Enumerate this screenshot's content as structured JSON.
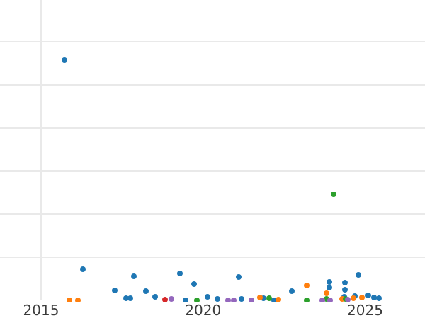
{
  "figure": {
    "background_color": "#ffffff",
    "grid_color": "#e9e9e9",
    "tick_label_color": "#3b3b3b"
  },
  "chart_data": {
    "type": "scatter",
    "title": "",
    "xlabel": "",
    "ylabel": "",
    "grid": true,
    "legend": "none",
    "x_ticks": [
      {
        "label": "2015",
        "value": 2015
      },
      {
        "label": "2020",
        "value": 2020
      },
      {
        "label": "2025",
        "value": 2025
      }
    ],
    "x_range": [
      2013.73,
      2026.85
    ],
    "y_unit": "gridline_intervals_above_baseline",
    "y_range": [
      0,
      6.97
    ],
    "y_gridlines": [
      1,
      2,
      3,
      4,
      5,
      6
    ],
    "series": [
      {
        "name": "series-blue",
        "color": "#1f77b4",
        "points": [
          [
            2015.72,
            5.57
          ],
          [
            2016.29,
            0.72
          ],
          [
            2017.27,
            0.23
          ],
          [
            2017.62,
            0.05
          ],
          [
            2017.75,
            0.05
          ],
          [
            2017.86,
            0.56
          ],
          [
            2018.23,
            0.21
          ],
          [
            2018.52,
            0.08
          ],
          [
            2019.28,
            0.62
          ],
          [
            2019.46,
            0.0
          ],
          [
            2019.72,
            0.38
          ],
          [
            2020.13,
            0.08
          ],
          [
            2020.44,
            0.03
          ],
          [
            2021.1,
            0.54
          ],
          [
            2021.19,
            0.03
          ],
          [
            2021.86,
            0.05
          ],
          [
            2022.19,
            0.0
          ],
          [
            2022.74,
            0.21
          ],
          [
            2023.9,
            0.43
          ],
          [
            2023.9,
            0.3
          ],
          [
            2024.36,
            0.08
          ],
          [
            2024.38,
            0.41
          ],
          [
            2024.38,
            0.25
          ],
          [
            2024.68,
            0.1
          ],
          [
            2024.79,
            0.59
          ],
          [
            2025.1,
            0.11
          ],
          [
            2025.27,
            0.07
          ],
          [
            2025.43,
            0.05
          ]
        ]
      },
      {
        "name": "series-orange",
        "color": "#ff7f0e",
        "points": [
          [
            2015.87,
            0.0
          ],
          [
            2016.14,
            0.0
          ],
          [
            2021.75,
            0.07
          ],
          [
            2022.32,
            0.02
          ],
          [
            2023.2,
            0.34
          ],
          [
            2023.81,
            0.16
          ],
          [
            2024.29,
            0.03
          ],
          [
            2024.64,
            0.05
          ],
          [
            2024.9,
            0.07
          ]
        ]
      },
      {
        "name": "series-green",
        "color": "#2ca02c",
        "points": [
          [
            2024.03,
            2.46
          ],
          [
            2019.81,
            0.0
          ],
          [
            2022.04,
            0.05
          ],
          [
            2023.2,
            0.0
          ],
          [
            2023.81,
            0.03
          ],
          [
            2024.4,
            0.03
          ]
        ]
      },
      {
        "name": "series-red",
        "color": "#d62728",
        "points": [
          [
            2018.83,
            0.02
          ]
        ]
      },
      {
        "name": "series-purple",
        "color": "#9467bd",
        "points": [
          [
            2019.02,
            0.03
          ],
          [
            2020.77,
            0.0
          ],
          [
            2020.95,
            0.0
          ],
          [
            2021.49,
            0.0
          ],
          [
            2023.68,
            0.0
          ],
          [
            2023.92,
            0.0
          ],
          [
            2024.46,
            0.02
          ]
        ]
      }
    ]
  }
}
